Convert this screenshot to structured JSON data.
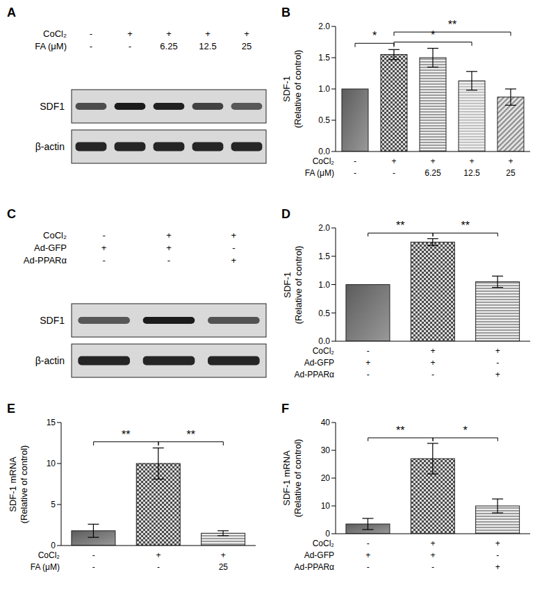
{
  "chart_data": [
    {
      "panel": "A",
      "type": "blot",
      "rows": [
        "SDF1",
        "β-actin"
      ],
      "conditions": [
        {
          "label": "CoCl₂",
          "cells": [
            "-",
            "+",
            "+",
            "+",
            "+"
          ]
        },
        {
          "label": "FA (μM)",
          "cells": [
            "-",
            "-",
            "6.25",
            "12.5",
            "25"
          ]
        }
      ]
    },
    {
      "panel": "B",
      "type": "bar",
      "y_label": [
        "SDF-1",
        "(Relative of control)"
      ],
      "categories": [
        null,
        null,
        null,
        null,
        null
      ],
      "values": [
        1.0,
        1.55,
        1.5,
        1.13,
        0.87
      ],
      "errors": [
        0,
        0.08,
        0.15,
        0.15,
        0.13
      ],
      "colors": [
        "#5c5c5c",
        "#4a4a4a",
        "#9c9c9c",
        "#b4b4b4",
        "#8c8c8c"
      ],
      "ylim": [
        0,
        2
      ],
      "yticks": [
        {
          "value": 0,
          "label": "0.0"
        },
        0.5,
        {
          "value": 1,
          "label": "1.0"
        },
        1.5,
        {
          "value": 2,
          "label": "2.0"
        }
      ],
      "conditions": [
        {
          "label": "CoCl₂",
          "cells": [
            "-",
            "+",
            "+",
            "+",
            "+"
          ]
        },
        {
          "label": "FA (μM)",
          "cells": [
            "-",
            "-",
            "6.25",
            "12.5",
            "25"
          ]
        }
      ],
      "significance": [
        {
          "from": 0,
          "to": 1,
          "label": "*"
        },
        {
          "from": 1,
          "to": 3,
          "label": "*"
        },
        {
          "from": 1,
          "to": 4,
          "label": "**"
        }
      ]
    },
    {
      "panel": "C",
      "type": "blot",
      "rows": [
        "SDF1",
        "β-actin"
      ],
      "conditions": [
        {
          "label": "CoCl₂",
          "cells": [
            "-",
            "+",
            "+"
          ]
        },
        {
          "label": "Ad-GFP",
          "cells": [
            "+",
            "+",
            "-"
          ]
        },
        {
          "label": "Ad-PPARα",
          "cells": [
            "-",
            "-",
            "+"
          ]
        }
      ]
    },
    {
      "panel": "D",
      "type": "bar",
      "y_label": [
        "SDF-1",
        "(Relative of control)"
      ],
      "categories": [
        null,
        null,
        null
      ],
      "values": [
        1.0,
        1.75,
        1.05
      ],
      "errors": [
        0,
        0.06,
        0.1
      ],
      "colors": [
        "#5c5c5c",
        "#4a4a4a",
        "#9c9c9c"
      ],
      "ylim": [
        0,
        2
      ],
      "yticks": [
        {
          "value": 0,
          "label": "0.0"
        },
        0.5,
        {
          "value": 1,
          "label": "1.0"
        },
        1.5,
        {
          "value": 2,
          "label": "2.0"
        }
      ],
      "conditions": [
        {
          "label": "CoCl₂",
          "cells": [
            "-",
            "+",
            "+"
          ]
        },
        {
          "label": "Ad-GFP",
          "cells": [
            "+",
            "+",
            "-"
          ]
        },
        {
          "label": "Ad-PPARα",
          "cells": [
            "-",
            "-",
            "+"
          ]
        }
      ],
      "significance": [
        {
          "from": 0,
          "to": 1,
          "label": "**"
        },
        {
          "from": 1,
          "to": 2,
          "label": "**"
        }
      ]
    },
    {
      "panel": "E",
      "type": "bar",
      "y_label": [
        "SDF-1 mRNA",
        "(Relative of control)"
      ],
      "categories": [
        null,
        null,
        null
      ],
      "values": [
        1.8,
        10.0,
        1.5
      ],
      "errors": [
        0.8,
        1.9,
        0.3
      ],
      "colors": [
        "#5c5c5c",
        "#4a4a4a",
        "#9c9c9c"
      ],
      "ylim": [
        0,
        15
      ],
      "yticks": [
        0,
        5,
        10,
        15
      ],
      "conditions": [
        {
          "label": "CoCl₂",
          "cells": [
            "-",
            "+",
            "+"
          ]
        },
        {
          "label": "FA (μM)",
          "cells": [
            "-",
            "-",
            "25"
          ]
        }
      ],
      "significance": [
        {
          "from": 0,
          "to": 1,
          "label": "**"
        },
        {
          "from": 1,
          "to": 2,
          "label": "**"
        }
      ]
    },
    {
      "panel": "F",
      "type": "bar",
      "y_label": [
        "SDF-1 mRNA",
        "(Relative of control)"
      ],
      "categories": [
        null,
        null,
        null
      ],
      "values": [
        3.5,
        27,
        10
      ],
      "errors": [
        2,
        5.5,
        2.5
      ],
      "colors": [
        "#5c5c5c",
        "#4a4a4a",
        "#9c9c9c"
      ],
      "ylim": [
        0,
        40
      ],
      "yticks": [
        0,
        10,
        20,
        30,
        40
      ],
      "conditions": [
        {
          "label": "CoCl₂",
          "cells": [
            "-",
            "+",
            "+"
          ]
        },
        {
          "label": "Ad-GFP",
          "cells": [
            "+",
            "+",
            "-"
          ]
        },
        {
          "label": "Ad-PPARα",
          "cells": [
            "-",
            "-",
            "+"
          ]
        }
      ],
      "significance": [
        {
          "from": 0,
          "to": 1,
          "label": "**"
        },
        {
          "from": 1,
          "to": 2,
          "label": "*"
        }
      ]
    }
  ]
}
